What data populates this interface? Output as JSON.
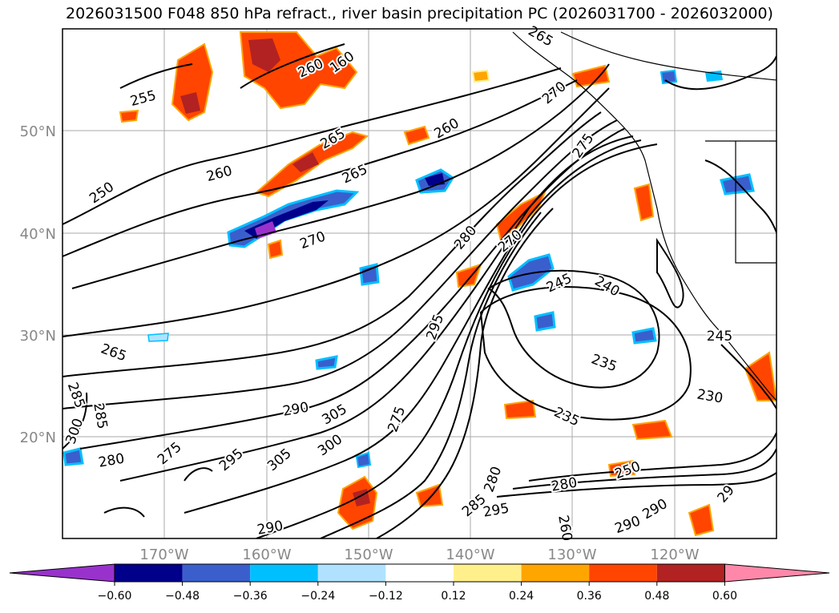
{
  "title": "2026031500 F048 850 hPa refract., river basin precipitation PC (2026031700 - 2026032000)",
  "map": {
    "lon_ticks": [
      "170°W",
      "160°W",
      "150°W",
      "140°W",
      "130°W",
      "120°W"
    ],
    "lat_ticks": [
      "50°N",
      "40°N",
      "30°N",
      "20°N"
    ],
    "contour_labels": [
      "265",
      "255",
      "260",
      "160",
      "270",
      "260",
      "265",
      "265",
      "260",
      "250",
      "270",
      "280",
      "275",
      "270",
      "245",
      "240",
      "235",
      "230",
      "235",
      "245",
      "265",
      "285",
      "285",
      "300",
      "280",
      "275",
      "290",
      "295",
      "305",
      "300",
      "290",
      "305",
      "275",
      "280",
      "285",
      "295",
      "290",
      "250",
      "280",
      "290",
      "295",
      "260",
      "29",
      "215"
    ]
  },
  "colorbar": {
    "ticks": [
      "−0.60",
      "−0.48",
      "−0.36",
      "−0.24",
      "−0.12",
      "0.12",
      "0.24",
      "0.36",
      "0.48",
      "0.60"
    ],
    "colors": [
      "#9932cc",
      "#00008b",
      "#3a5fcd",
      "#00bfff",
      "#b0e2ff",
      "#ffffff",
      "#fff08c",
      "#ffa500",
      "#ff4500",
      "#b22222",
      "#ff88aa"
    ]
  }
}
